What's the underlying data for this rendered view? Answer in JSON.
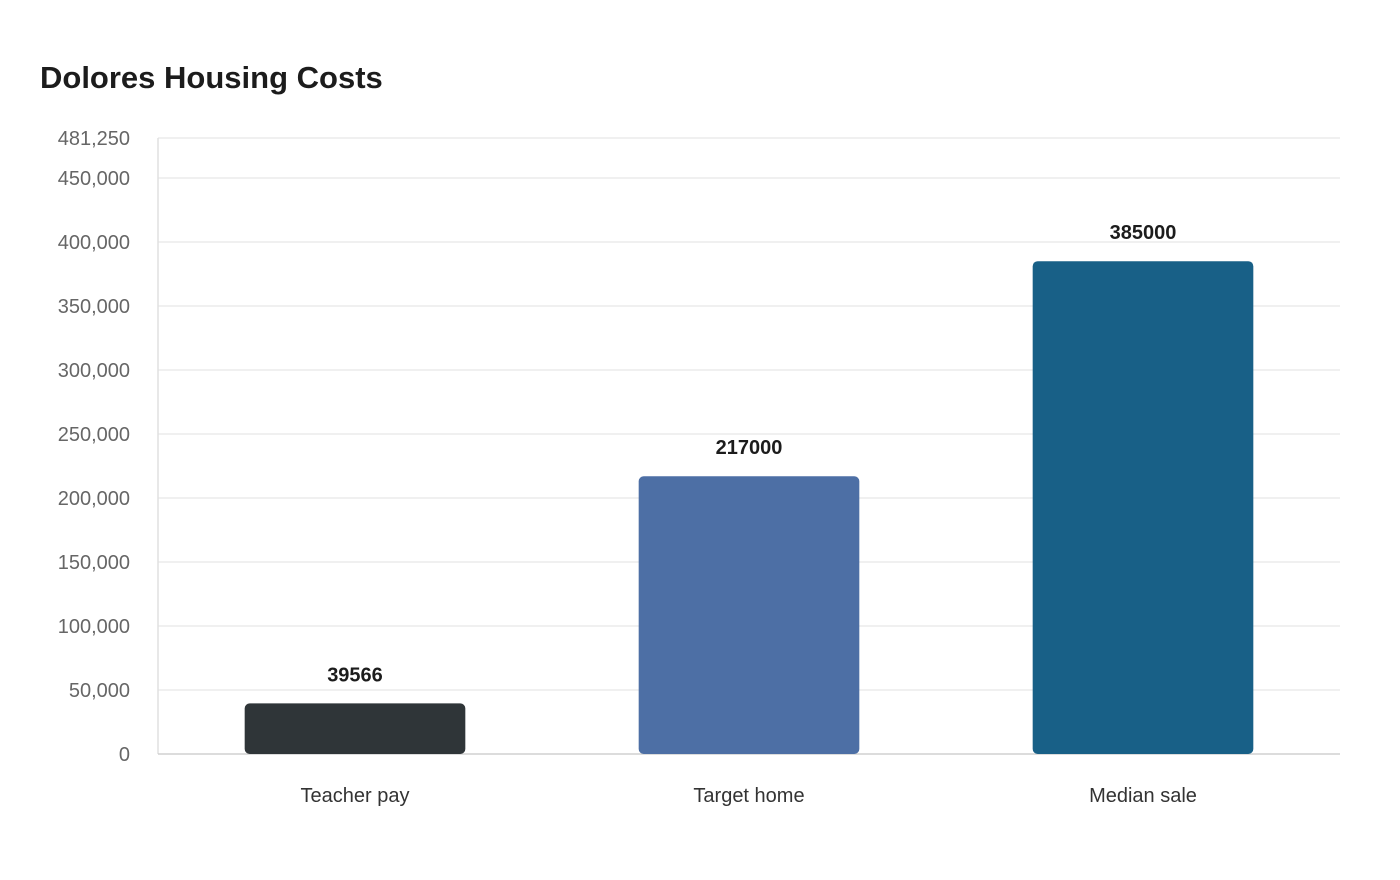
{
  "chart_data": {
    "type": "bar",
    "title": "Dolores Housing Costs",
    "xlabel": "",
    "ylabel": "",
    "categories": [
      "Teacher pay",
      "Target home",
      "Median sale"
    ],
    "values": [
      39566,
      217000,
      385000
    ],
    "data_labels": [
      "39566",
      "217000",
      "385000"
    ],
    "colors": [
      "#2f3538",
      "#4d6fa5",
      "#186087"
    ],
    "ylim": [
      0,
      481250
    ],
    "yticks": [
      0,
      50000,
      100000,
      150000,
      200000,
      250000,
      300000,
      350000,
      400000,
      450000,
      481250
    ],
    "ytick_labels": [
      "0",
      "50,000",
      "100,000",
      "150,000",
      "200,000",
      "250,000",
      "300,000",
      "350,000",
      "400,000",
      "450,000",
      "481,250"
    ],
    "grid": true,
    "legend": "none"
  }
}
